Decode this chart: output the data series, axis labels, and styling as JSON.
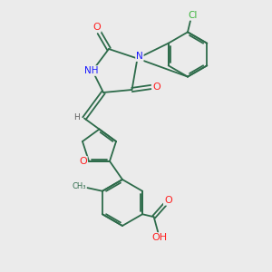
{
  "background_color": "#ebebeb",
  "bond_color": "#2d6b4a",
  "N_color": "#1a1aff",
  "O_color": "#ff2020",
  "Cl_color": "#3db53d",
  "H_color": "#606060",
  "font_size": 7.0,
  "bond_width": 1.3,
  "fig_w": 3.0,
  "fig_h": 3.0,
  "dpi": 100,
  "xlim": [
    0,
    10
  ],
  "ylim": [
    0,
    10
  ]
}
